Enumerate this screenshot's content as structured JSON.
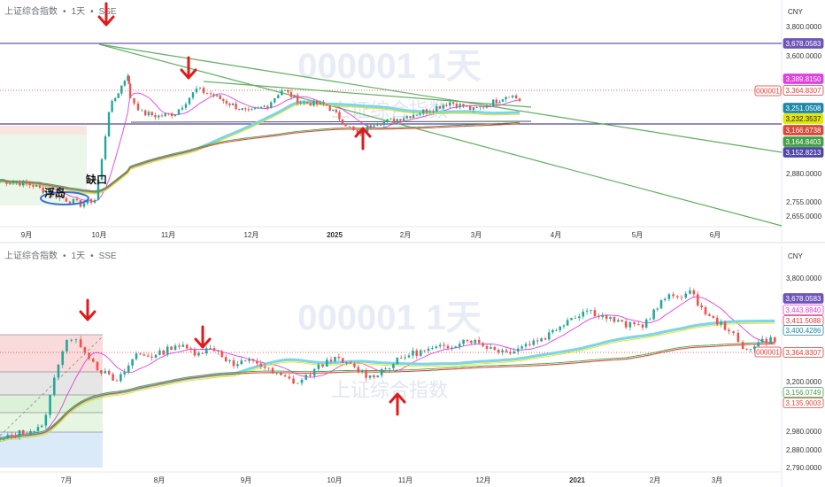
{
  "charts": [
    {
      "id": "top",
      "header": {
        "symbol_name": "上证综合指数",
        "interval": "1天",
        "exchange": "SSE"
      },
      "currency": "CNY",
      "watermark": {
        "code": "000001",
        "interval": "1天",
        "name": "上证综合指数"
      },
      "y_ticks": [
        "3,800.0000",
        "3,600.0000",
        "2,880.0000",
        "2,755.0000",
        "2,655.0000"
      ],
      "x_ticks": [
        "9月",
        "10月",
        "11月",
        "12月",
        "2025",
        "2月",
        "3月",
        "4月",
        "5月",
        "6月"
      ],
      "badges": [
        {
          "text": "3,678.0583",
          "bg": "#6e55b8",
          "fg": "#ffffff"
        },
        {
          "text": "3,389.8150",
          "bg": "#e040e0",
          "fg": "#ffffff"
        },
        {
          "text": "3,364.8307",
          "bg": "#ffffff",
          "fg": "#e53935",
          "border": "#e53935"
        },
        {
          "text": "3,251.0508",
          "bg": "#1e88a8",
          "fg": "#ffffff"
        },
        {
          "text": "3,232.3537",
          "bg": "#e6e600",
          "fg": "#222222"
        },
        {
          "text": "3,166.6738",
          "bg": "#d84a3a",
          "fg": "#ffffff"
        },
        {
          "text": "3,164.8403",
          "bg": "#43a047",
          "fg": "#ffffff"
        },
        {
          "text": "3,152.8213",
          "bg": "#5046a8",
          "fg": "#ffffff"
        }
      ],
      "symbol_badge": "000001",
      "annotations": {
        "gap_label": "缺口",
        "island_label": "浮岛"
      }
    },
    {
      "id": "bottom",
      "header": {
        "symbol_name": "上证综合指数",
        "interval": "1天",
        "exchange": "SSE"
      },
      "currency": "CNY",
      "watermark": {
        "code": "000001",
        "interval": "1天",
        "name": "上证综合指数"
      },
      "y_ticks": [
        "3,800.0000",
        "3,200.0000",
        "2,980.0000",
        "2,880.0000",
        "2,790.0000"
      ],
      "x_ticks": [
        "7月",
        "8月",
        "9月",
        "10月",
        "11月",
        "12月",
        "2021",
        "2月",
        "3月"
      ],
      "badges": [
        {
          "text": "3,678.0583",
          "bg": "#6e55b8",
          "fg": "#ffffff"
        },
        {
          "text": "3,443.8840",
          "bg": "#ffffff",
          "fg": "#e040e0",
          "border": "#e040e0"
        },
        {
          "text": "3,411.5088",
          "bg": "#ffffff",
          "fg": "#e53935",
          "border": "#e53935"
        },
        {
          "text": "3,400.4286",
          "bg": "#ffffff",
          "fg": "#1e88a8",
          "border": "#1e88a8"
        },
        {
          "text": "3,364.8307",
          "bg": "#ffffff",
          "fg": "#e53935",
          "border": "#e53935"
        },
        {
          "text": "3,156.0749",
          "bg": "#ffffff",
          "fg": "#43a047",
          "border": "#43a047"
        },
        {
          "text": "3,135.9003",
          "bg": "#ffffff",
          "fg": "#d84a3a",
          "border": "#d84a3a"
        }
      ],
      "symbol_badge": "000001"
    }
  ],
  "chart_data": [
    {
      "type": "candlestick",
      "title": "上证综合指数 · 1天 · SSE",
      "xlabel": "",
      "ylabel": "CNY",
      "ylim": [
        2600,
        3850
      ],
      "x_range": [
        "2024-08-15",
        "2025-07-10"
      ],
      "levels": [
        {
          "value": 3678.0583,
          "color": "#6e55b8",
          "style": "solid"
        },
        {
          "value": 3152.8213,
          "color": "#5046a8",
          "style": "solid"
        },
        {
          "value": 3364.8307,
          "color": "#e53935",
          "style": "dotted"
        }
      ],
      "ma_last": {
        "ma_fast": 3389.815,
        "ma_mid": 3251.0508,
        "ma_slow_a": 3232.3537,
        "ma_slow_b": 3166.6738,
        "ma_slow_c": 3164.8403
      },
      "price_series": [
        [
          "2024-08-15",
          2870
        ],
        [
          "2024-08-22",
          2860
        ],
        [
          "2024-08-29",
          2840
        ],
        [
          "2024-09-05",
          2790
        ],
        [
          "2024-09-12",
          2750
        ],
        [
          "2024-09-18",
          2720
        ],
        [
          "2024-09-24",
          2750
        ],
        [
          "2024-09-27",
          3000
        ],
        [
          "2024-09-30",
          3320
        ],
        [
          "2024-10-08",
          3550
        ],
        [
          "2024-10-09",
          3400
        ],
        [
          "2024-10-14",
          3300
        ],
        [
          "2024-10-21",
          3280
        ],
        [
          "2024-10-28",
          3300
        ],
        [
          "2024-11-06",
          3450
        ],
        [
          "2024-11-12",
          3420
        ],
        [
          "2024-11-20",
          3360
        ],
        [
          "2024-11-28",
          3300
        ],
        [
          "2024-12-06",
          3350
        ],
        [
          "2024-12-12",
          3450
        ],
        [
          "2024-12-20",
          3370
        ],
        [
          "2024-12-31",
          3350
        ],
        [
          "2025-01-08",
          3230
        ],
        [
          "2025-01-13",
          3160
        ],
        [
          "2025-01-20",
          3240
        ],
        [
          "2025-01-27",
          3250
        ],
        [
          "2025-02-07",
          3300
        ],
        [
          "2025-02-14",
          3330
        ],
        [
          "2025-02-21",
          3370
        ],
        [
          "2025-03-03",
          3320
        ],
        [
          "2025-03-10",
          3360
        ],
        [
          "2025-03-18",
          3420
        ],
        [
          "2025-03-24",
          3370
        ]
      ]
    },
    {
      "type": "candlestick",
      "title": "上证综合指数 · 1天 · SSE",
      "xlabel": "",
      "ylabel": "CNY",
      "ylim": [
        2780,
        3830
      ],
      "x_range": [
        "2020-06-15",
        "2021-03-22"
      ],
      "levels": [
        {
          "value": 3364.8307,
          "color": "#e53935",
          "style": "dotted"
        }
      ],
      "ma_last": {
        "ma_fast": 3443.884,
        "ma_mid": 3400.4286,
        "ma_slow_a": 3156.0749,
        "ma_slow_b": 3135.9003
      },
      "price_series": [
        [
          "2020-06-15",
          2920
        ],
        [
          "2020-06-22",
          2960
        ],
        [
          "2020-06-30",
          2985
        ],
        [
          "2020-07-03",
          3150
        ],
        [
          "2020-07-06",
          3330
        ],
        [
          "2020-07-09",
          3450
        ],
        [
          "2020-07-14",
          3420
        ],
        [
          "2020-07-20",
          3300
        ],
        [
          "2020-07-27",
          3220
        ],
        [
          "2020-08-03",
          3370
        ],
        [
          "2020-08-10",
          3360
        ],
        [
          "2020-08-17",
          3420
        ],
        [
          "2020-08-24",
          3380
        ],
        [
          "2020-08-31",
          3400
        ],
        [
          "2020-09-07",
          3310
        ],
        [
          "2020-09-14",
          3340
        ],
        [
          "2020-09-21",
          3270
        ],
        [
          "2020-09-30",
          3220
        ],
        [
          "2020-10-12",
          3350
        ],
        [
          "2020-10-19",
          3310
        ],
        [
          "2020-10-26",
          3250
        ],
        [
          "2020-11-02",
          3310
        ],
        [
          "2020-11-09",
          3370
        ],
        [
          "2020-11-16",
          3390
        ],
        [
          "2020-11-23",
          3410
        ],
        [
          "2020-11-30",
          3450
        ],
        [
          "2020-12-07",
          3410
        ],
        [
          "2020-12-14",
          3380
        ],
        [
          "2020-12-21",
          3420
        ],
        [
          "2020-12-28",
          3460
        ],
        [
          "2021-01-05",
          3550
        ],
        [
          "2021-01-12",
          3600
        ],
        [
          "2021-01-19",
          3560
        ],
        [
          "2021-01-26",
          3520
        ],
        [
          "2021-02-01",
          3520
        ],
        [
          "2021-02-09",
          3660
        ],
        [
          "2021-02-18",
          3690
        ],
        [
          "2021-02-25",
          3560
        ],
        [
          "2021-03-04",
          3500
        ],
        [
          "2021-03-09",
          3390
        ],
        [
          "2021-03-16",
          3440
        ],
        [
          "2021-03-22",
          3450
        ]
      ]
    }
  ]
}
